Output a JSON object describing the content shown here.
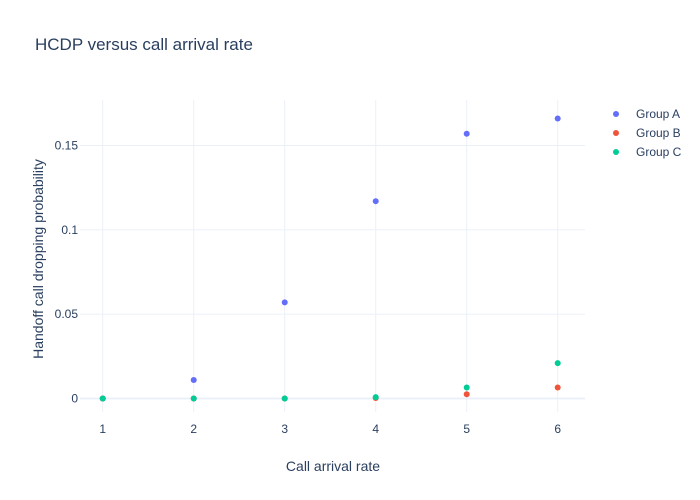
{
  "chart_data": {
    "type": "scatter",
    "title": "HCDP versus call arrival rate",
    "xlabel": "Call arrival rate",
    "ylabel": "Handoff call dropping probability",
    "x": [
      1,
      2,
      3,
      4,
      5,
      6
    ],
    "xlim": [
      0.75,
      6.3
    ],
    "ylim": [
      -0.008,
      0.177
    ],
    "xticks": [
      1,
      2,
      3,
      4,
      5,
      6
    ],
    "yticks": [
      0,
      0.05,
      0.1,
      0.15
    ],
    "ytick_labels": [
      "0",
      "0.05",
      "0.1",
      "0.15"
    ],
    "grid": true,
    "legend_position": "top-right",
    "series": [
      {
        "name": "Group A",
        "color": "#636efa",
        "values": [
          0,
          0.011,
          0.057,
          0.117,
          0.157,
          0.166
        ]
      },
      {
        "name": "Group B",
        "color": "#ef553b",
        "values": [
          0,
          0,
          0,
          0.0003,
          0.0025,
          0.0065
        ]
      },
      {
        "name": "Group C",
        "color": "#00cc96",
        "values": [
          0,
          0,
          0,
          0.0008,
          0.0065,
          0.021
        ]
      }
    ]
  }
}
